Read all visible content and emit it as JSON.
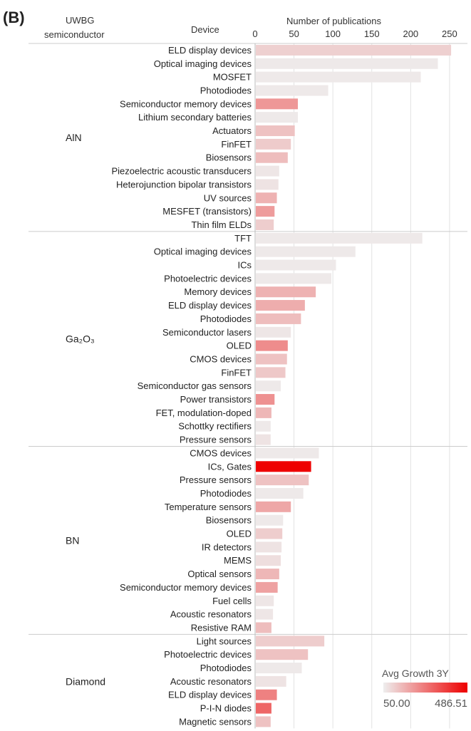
{
  "panel_label": "(B)",
  "header": {
    "col1": "UWBG",
    "col1b": "semiconductor",
    "col2": "Device",
    "col3": "Number of publications"
  },
  "legend": {
    "title": "Avg Growth 3Y",
    "min_label": "50.00",
    "max_label": "486.51"
  },
  "colors": {
    "low": "#eeeeee",
    "high": "#ee0000",
    "divider": "#cccccc",
    "grid": "#e2e2e2"
  },
  "chart_data": {
    "type": "bar",
    "orientation": "horizontal",
    "xlabel": "Number of publications",
    "xlim": [
      0,
      262
    ],
    "xticks": [
      0,
      50,
      100,
      150,
      200,
      250
    ],
    "color_metric": {
      "name": "Avg Growth 3Y",
      "min": 50.0,
      "max": 486.51
    },
    "groups": [
      {
        "name": "AlN",
        "bars": [
          {
            "label": "ELD display devices",
            "value": 252,
            "growth": 105
          },
          {
            "label": "Optical imaging devices",
            "value": 235,
            "growth": 60
          },
          {
            "label": "MOSFET",
            "value": 213,
            "growth": 60
          },
          {
            "label": "Photodiodes",
            "value": 94,
            "growth": 60
          },
          {
            "label": "Semiconductor memory devices",
            "value": 55,
            "growth": 210
          },
          {
            "label": "Lithium secondary batteries",
            "value": 55,
            "growth": 60
          },
          {
            "label": "Actuators",
            "value": 51,
            "growth": 130
          },
          {
            "label": "FinFET",
            "value": 46,
            "growth": 115
          },
          {
            "label": "Biosensors",
            "value": 42,
            "growth": 140
          },
          {
            "label": "Piezoelectric acoustic transducers",
            "value": 31,
            "growth": 65
          },
          {
            "label": "Heterojunction bipolar transistors",
            "value": 30,
            "growth": 70
          },
          {
            "label": "UV sources",
            "value": 28,
            "growth": 160
          },
          {
            "label": "MESFET (transistors)",
            "value": 25,
            "growth": 200
          },
          {
            "label": "Thin film ELDs",
            "value": 24,
            "growth": 110
          }
        ]
      },
      {
        "name": "Ga₂O₃",
        "bars": [
          {
            "label": "TFT",
            "value": 215,
            "growth": 60
          },
          {
            "label": "Optical imaging devices",
            "value": 129,
            "growth": 60
          },
          {
            "label": "ICs",
            "value": 104,
            "growth": 60
          },
          {
            "label": "Photoelectric devices",
            "value": 98,
            "growth": 60
          },
          {
            "label": "Memory devices",
            "value": 78,
            "growth": 160
          },
          {
            "label": "ELD display devices",
            "value": 64,
            "growth": 170
          },
          {
            "label": "Photodiodes",
            "value": 59,
            "growth": 140
          },
          {
            "label": "Semiconductor lasers",
            "value": 46,
            "growth": 65
          },
          {
            "label": "OLED",
            "value": 42,
            "growth": 230
          },
          {
            "label": "CMOS devices",
            "value": 41,
            "growth": 130
          },
          {
            "label": "FinFET",
            "value": 39,
            "growth": 120
          },
          {
            "label": "Semiconductor gas sensors",
            "value": 33,
            "growth": 60
          },
          {
            "label": "Power transistors",
            "value": 25,
            "growth": 220
          },
          {
            "label": "FET, modulation-doped",
            "value": 21,
            "growth": 150
          },
          {
            "label": "Schottky rectifiers",
            "value": 20,
            "growth": 60
          },
          {
            "label": "Pressure sensors",
            "value": 20,
            "growth": 70
          }
        ]
      },
      {
        "name": "BN",
        "bars": [
          {
            "label": "CMOS devices",
            "value": 82,
            "growth": 60
          },
          {
            "label": "ICs, Gates",
            "value": 72,
            "growth": 486
          },
          {
            "label": "Pressure sensors",
            "value": 69,
            "growth": 130
          },
          {
            "label": "Photodiodes",
            "value": 62,
            "growth": 60
          },
          {
            "label": "Temperature sensors",
            "value": 46,
            "growth": 180
          },
          {
            "label": "Biosensors",
            "value": 36,
            "growth": 60
          },
          {
            "label": "OLED",
            "value": 35,
            "growth": 110
          },
          {
            "label": "IR detectors",
            "value": 34,
            "growth": 70
          },
          {
            "label": "MEMS",
            "value": 33,
            "growth": 80
          },
          {
            "label": "Optical sensors",
            "value": 31,
            "growth": 150
          },
          {
            "label": "Semiconductor memory devices",
            "value": 29,
            "growth": 190
          },
          {
            "label": "Fuel cells",
            "value": 24,
            "growth": 65
          },
          {
            "label": "Acoustic resonators",
            "value": 23,
            "growth": 65
          },
          {
            "label": "Resistive RAM",
            "value": 21,
            "growth": 140
          }
        ]
      },
      {
        "name": "Diamond",
        "bars": [
          {
            "label": "Light sources",
            "value": 89,
            "growth": 110
          },
          {
            "label": "Photoelectric devices",
            "value": 68,
            "growth": 130
          },
          {
            "label": "Photodiodes",
            "value": 60,
            "growth": 60
          },
          {
            "label": "Acoustic resonators",
            "value": 40,
            "growth": 70
          },
          {
            "label": "ELD display devices",
            "value": 28,
            "growth": 250
          },
          {
            "label": "P-I-N diodes",
            "value": 21,
            "growth": 300
          },
          {
            "label": "Magnetic sensors",
            "value": 20,
            "growth": 130
          }
        ]
      }
    ]
  }
}
